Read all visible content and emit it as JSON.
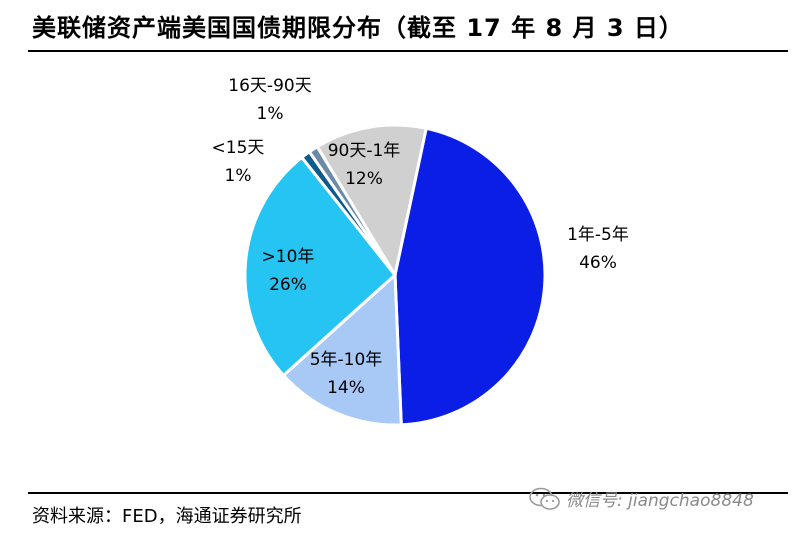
{
  "title": "美联储资产端美国国债期限分布（截至 17 年 8 月 3 日）",
  "footer": "资料来源：FED，海通证券研究所",
  "watermark": "微信号: jiangchao8848",
  "chart_data": {
    "type": "pie",
    "title": "美联储资产端美国国债期限分布（截至 17 年 8 月 3 日）",
    "slices": [
      {
        "label": "1年-5年",
        "value": 46,
        "display": "46%",
        "color": "#0a1ee6"
      },
      {
        "label": "5年-10年",
        "value": 14,
        "display": "14%",
        "color": "#a8c8f5"
      },
      {
        "label": ">10年",
        "value": 26,
        "display": "26%",
        "color": "#25c4f2"
      },
      {
        "label": "<15天",
        "value": 1,
        "display": "1%",
        "color": "#0d5a8c"
      },
      {
        "label": "16天-90天",
        "value": 1,
        "display": "1%",
        "color": "#6b8aa8"
      },
      {
        "label": "90天-1年",
        "value": 12,
        "display": "12%",
        "color": "#d0d0d0"
      }
    ]
  }
}
